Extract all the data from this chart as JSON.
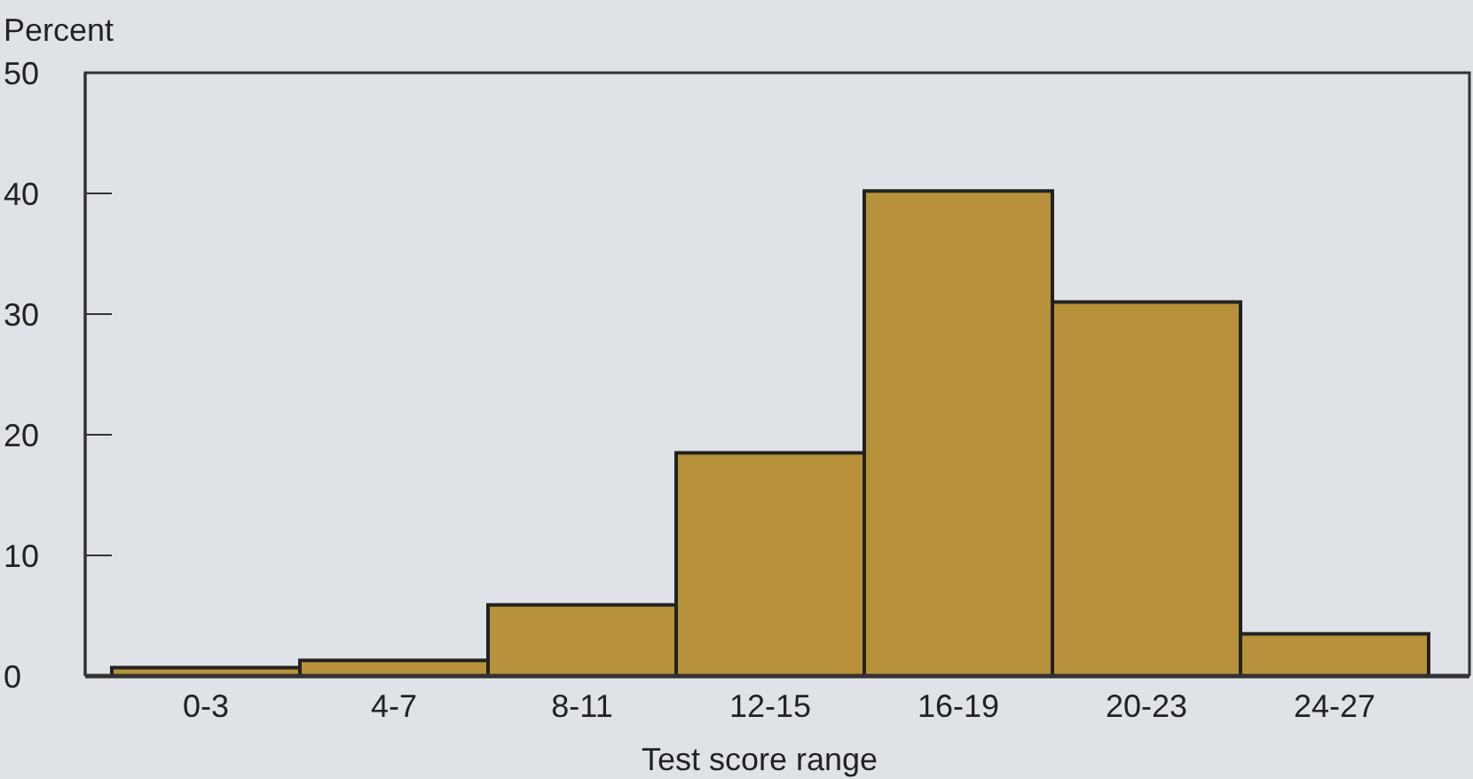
{
  "chart_data": {
    "type": "bar",
    "categories": [
      "0-3",
      "4-7",
      "8-11",
      "12-15",
      "16-19",
      "20-23",
      "24-27"
    ],
    "values": [
      0.7,
      1.3,
      5.9,
      18.5,
      40.2,
      31,
      3.5
    ],
    "color": "#b8923a",
    "ylabel": "Percent",
    "xlabel": "Test score range",
    "ylim": [
      0,
      50
    ],
    "yticks": [
      0,
      10,
      20,
      30,
      40,
      50
    ],
    "grid": false
  }
}
